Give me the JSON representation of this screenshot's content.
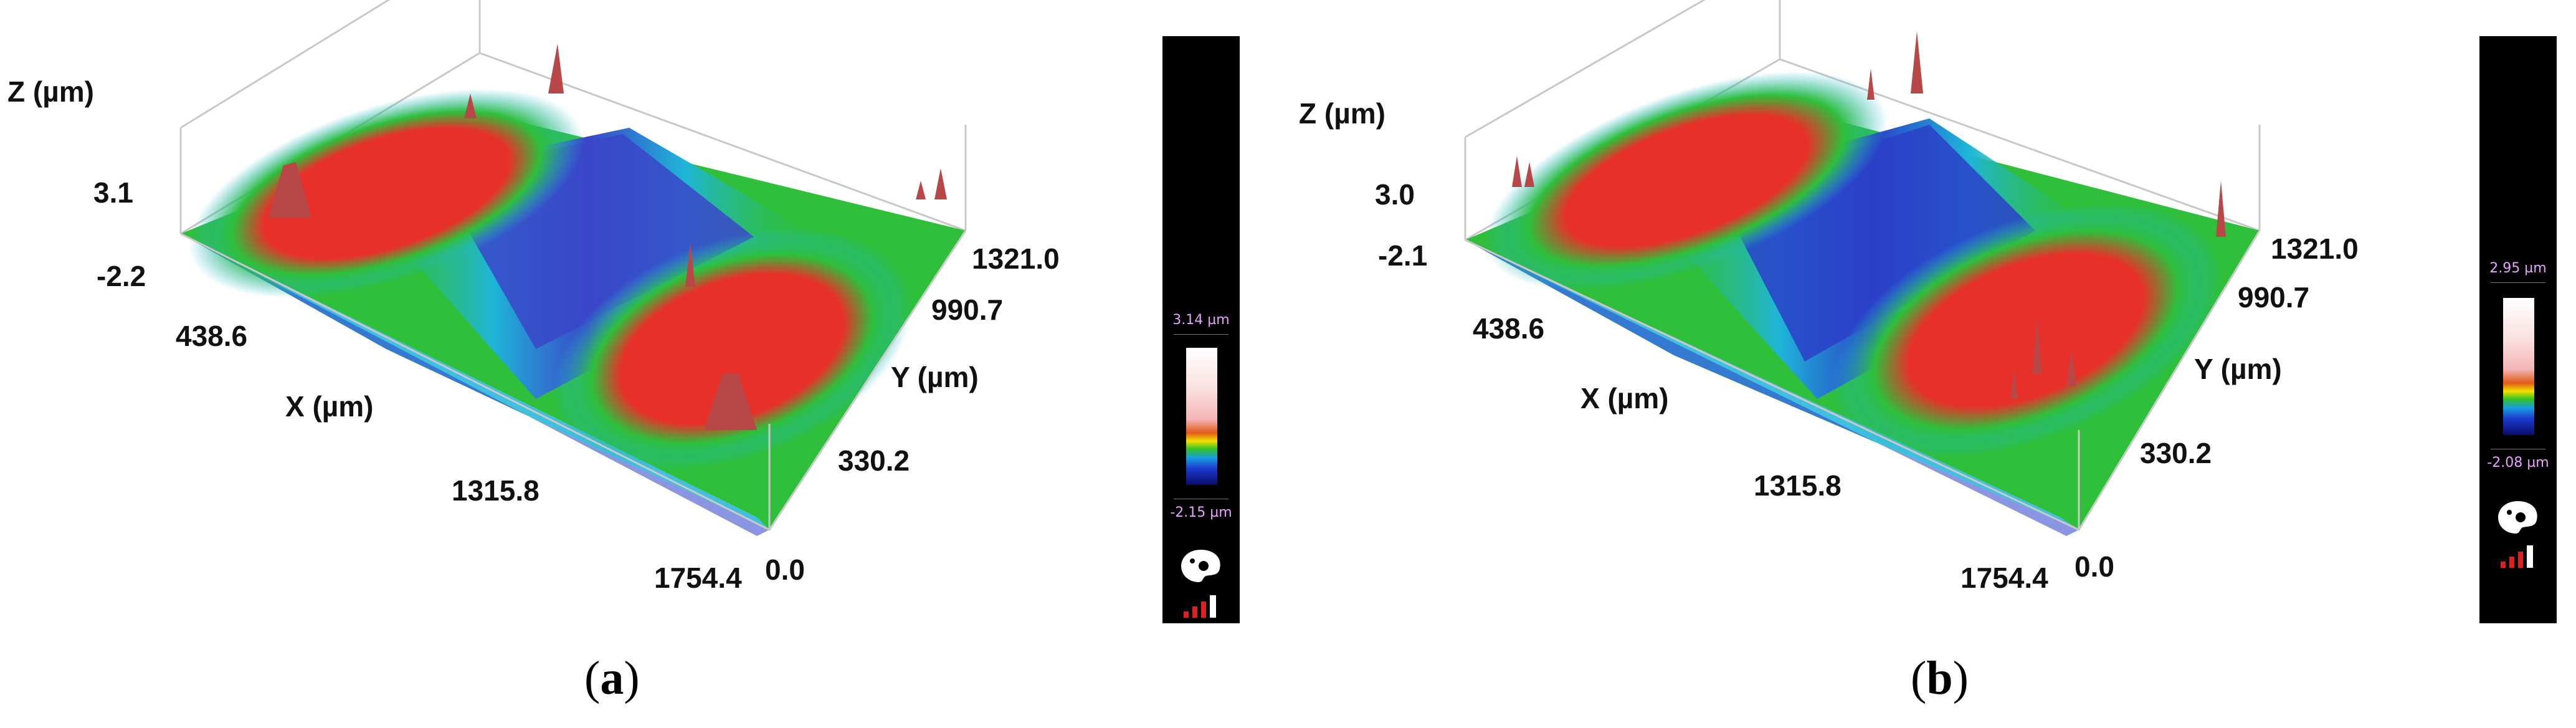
{
  "panels": [
    {
      "caption_open": "(",
      "caption_letter": "a",
      "caption_close": ")",
      "z_axis_label": "Z (µm)",
      "z_ticks": [
        "3.1",
        "-2.2"
      ],
      "x_axis_label": "X (µm)",
      "x_ticks": [
        "438.6",
        "1315.8",
        "1754.4"
      ],
      "y_axis_label": "Y (µm)",
      "y_ticks": [
        "1321.0",
        "990.7",
        "330.2",
        "0.0"
      ],
      "scale_max": "3.14 µm",
      "scale_min": "-2.15 µm"
    },
    {
      "caption_open": "(",
      "caption_letter": "b",
      "caption_close": ")",
      "z_axis_label": "Z (µm)",
      "z_ticks": [
        "3.0",
        "-2.1"
      ],
      "x_axis_label": "X (µm)",
      "x_ticks": [
        "438.6",
        "1315.8",
        "1754.4"
      ],
      "y_axis_label": "Y (µm)",
      "y_ticks": [
        "1321.0",
        "990.7",
        "330.2",
        "0.0"
      ],
      "scale_max": "2.95 µm",
      "scale_min": "-2.08 µm"
    }
  ],
  "colors": {
    "high": "#e8302a",
    "upper_mid": "#2fbf3a",
    "mid": "#1fb5d8",
    "low": "#2a3fc8",
    "peak": "#b84848",
    "box_line": "#c8c8c8",
    "scale_text": "#e8a0ff"
  },
  "icons": [
    "palette-icon",
    "signal-bars-icon"
  ]
}
